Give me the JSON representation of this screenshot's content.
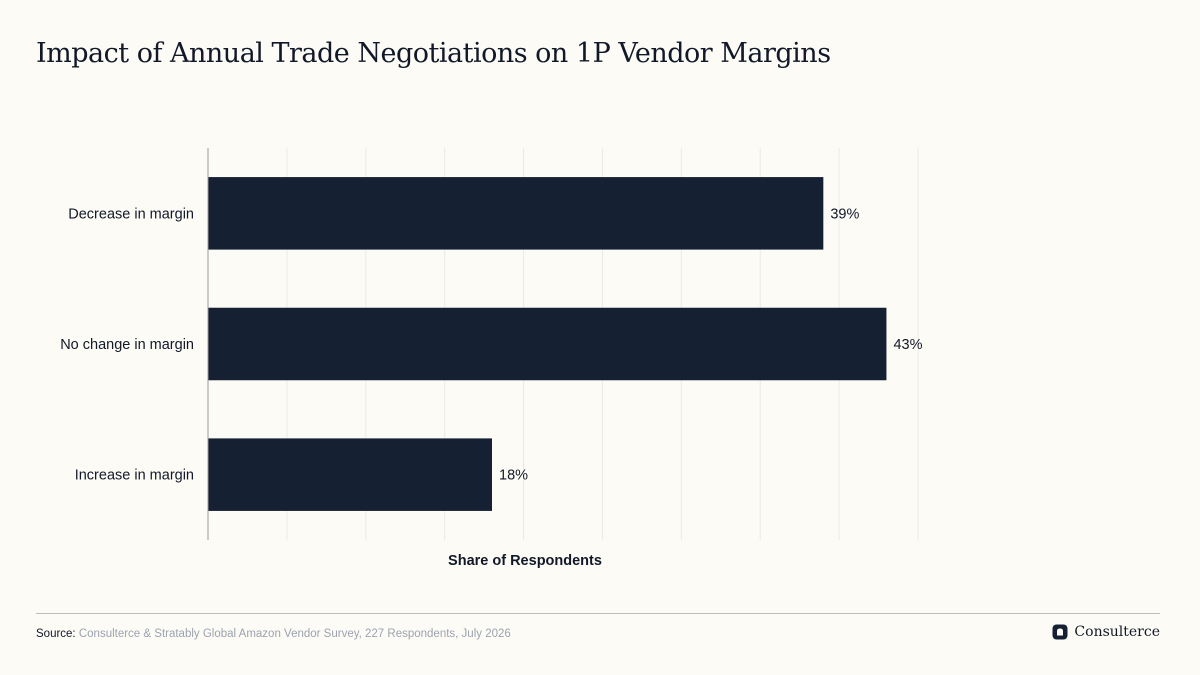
{
  "chart_data": {
    "type": "bar",
    "orientation": "horizontal",
    "title": "Impact of Annual Trade Negotiations on 1P Vendor Margins",
    "xlabel": "Share of Respondents",
    "ylabel": "",
    "categories": [
      "Decrease in margin",
      "No change in margin",
      "Increase in margin"
    ],
    "values": [
      39,
      43,
      18
    ],
    "data_labels": [
      "39%",
      "43%",
      "18%"
    ],
    "xlim": [
      0,
      45
    ],
    "grid": true,
    "x_tick_labels_shown": false,
    "bar_color": "#152033"
  },
  "footer": {
    "source_label": "Source:",
    "source_text": "Consulterce & Stratably Global Amazon Vendor Survey, 227 Respondents, July 2026",
    "brand_name": "Consulterce",
    "brand_icon": "consulterce-logo-icon"
  },
  "colors": {
    "background": "#fcfbf6",
    "text": "#111827",
    "muted": "#9ca3af",
    "gridline": "#ebebe6",
    "axis": "#9a9a9a"
  }
}
